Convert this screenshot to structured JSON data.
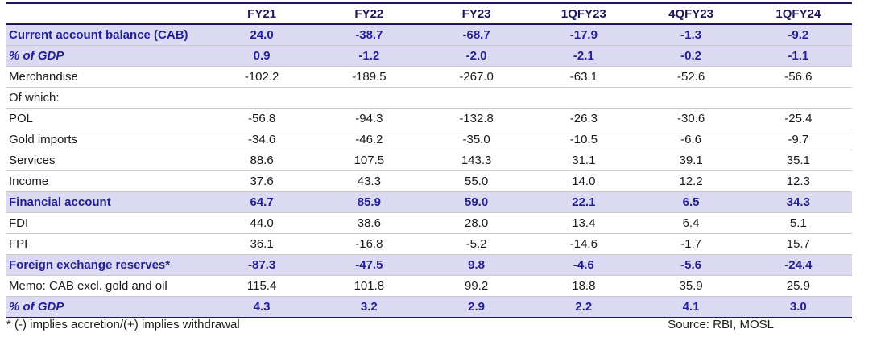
{
  "table": {
    "title": "external-balance-table",
    "columns": [
      "FY21",
      "FY22",
      "FY23",
      "1QFY23",
      "4QFY23",
      "1QFY24"
    ],
    "rows": [
      {
        "label": "Current account balance (CAB)",
        "values": [
          "24.0",
          "-38.7",
          "-68.7",
          "-17.9",
          "-1.3",
          "-9.2"
        ],
        "highlight": true,
        "italic": false
      },
      {
        "label": "% of GDP",
        "values": [
          "0.9",
          "-1.2",
          "-2.0",
          "-2.1",
          "-0.2",
          "-1.1"
        ],
        "highlight": true,
        "italic": true
      },
      {
        "label": "Merchandise",
        "values": [
          "-102.2",
          "-189.5",
          "-267.0",
          "-63.1",
          "-52.6",
          "-56.6"
        ],
        "highlight": false,
        "italic": false
      },
      {
        "label": "Of which:",
        "values": [
          "",
          "",
          "",
          "",
          "",
          ""
        ],
        "highlight": false,
        "italic": false
      },
      {
        "label": "POL",
        "values": [
          "-56.8",
          "-94.3",
          "-132.8",
          "-26.3",
          "-30.6",
          "-25.4"
        ],
        "highlight": false,
        "italic": false
      },
      {
        "label": "Gold imports",
        "values": [
          "-34.6",
          "-46.2",
          "-35.0",
          "-10.5",
          "-6.6",
          "-9.7"
        ],
        "highlight": false,
        "italic": false
      },
      {
        "label": "Services",
        "values": [
          "88.6",
          "107.5",
          "143.3",
          "31.1",
          "39.1",
          "35.1"
        ],
        "highlight": false,
        "italic": false
      },
      {
        "label": "Income",
        "values": [
          "37.6",
          "43.3",
          "55.0",
          "14.0",
          "12.2",
          "12.3"
        ],
        "highlight": false,
        "italic": false
      },
      {
        "label": "Financial account",
        "values": [
          "64.7",
          "85.9",
          "59.0",
          "22.1",
          "6.5",
          "34.3"
        ],
        "highlight": true,
        "italic": false
      },
      {
        "label": "FDI",
        "values": [
          "44.0",
          "38.6",
          "28.0",
          "13.4",
          "6.4",
          "5.1"
        ],
        "highlight": false,
        "italic": false
      },
      {
        "label": "FPI",
        "values": [
          "36.1",
          "-16.8",
          "-5.2",
          "-14.6",
          "-1.7",
          "15.7"
        ],
        "highlight": false,
        "italic": false
      },
      {
        "label": "Foreign exchange reserves*",
        "values": [
          "-87.3",
          "-47.5",
          "9.8",
          "-4.6",
          "-5.6",
          "-24.4"
        ],
        "highlight": true,
        "italic": false
      },
      {
        "label": "Memo: CAB excl. gold and oil",
        "values": [
          "115.4",
          "101.8",
          "99.2",
          "18.8",
          "35.9",
          "25.9"
        ],
        "highlight": false,
        "italic": false
      },
      {
        "label": "% of GDP",
        "values": [
          "4.3",
          "3.2",
          "2.9",
          "2.2",
          "4.1",
          "3.0"
        ],
        "highlight": true,
        "italic": true
      }
    ],
    "footnote": "* (-) implies accretion/(+) implies withdrawal",
    "source": "Source: RBI, MOSL"
  },
  "colors": {
    "highlight_bg": "#dcdaf3",
    "highlight_text": "#232096",
    "header_text": "#1c175e",
    "border_navy": "#1c175e",
    "separator": "#c9c9c9",
    "body_text": "#1a1a1a"
  }
}
